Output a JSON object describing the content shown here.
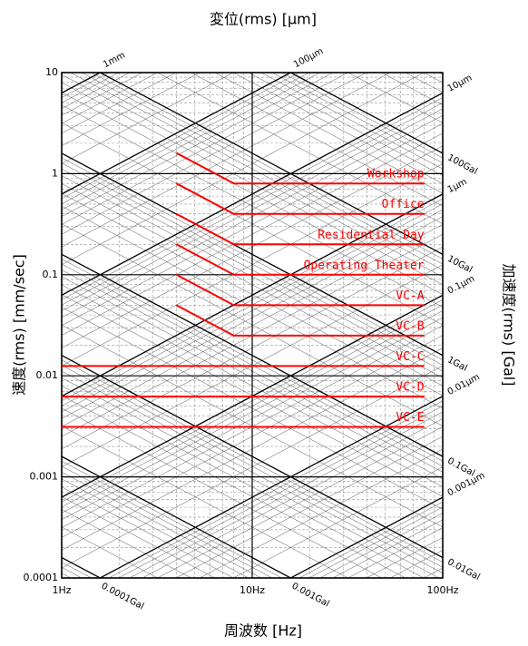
{
  "chart_data": {
    "type": "tripartite",
    "title": "変位(rms) [μm]",
    "ylabel": "速度(rms) [mm/sec]",
    "y2label": "加速度(rms) [Gal]",
    "xlabel": "周波数 [Hz]",
    "log_x": true,
    "log_y": true,
    "xlim": [
      1,
      100
    ],
    "xticks": [
      {
        "value": 1,
        "label": "1Hz"
      },
      {
        "value": 10,
        "label": "10Hz"
      },
      {
        "value": 100,
        "label": "100Hz"
      }
    ],
    "ylim": [
      0.0001,
      10
    ],
    "yticks": [
      0.0001,
      0.001,
      0.01,
      0.1,
      1,
      10
    ],
    "grid": true,
    "displacement_lines": [
      {
        "value": 1000,
        "label": "1mm"
      },
      {
        "value": 100,
        "label": "100μm"
      },
      {
        "value": 10,
        "label": "10μm"
      },
      {
        "value": 1,
        "label": "1μm"
      },
      {
        "value": 0.1,
        "label": "0.1μm"
      },
      {
        "value": 0.01,
        "label": "0.01μm"
      },
      {
        "value": 0.001,
        "label": "0.001μm"
      }
    ],
    "acceleration_lines": [
      {
        "value": 100,
        "label": "100Gal"
      },
      {
        "value": 10,
        "label": "10Gal"
      },
      {
        "value": 1,
        "label": "1Gal"
      },
      {
        "value": 0.1,
        "label": "0.1Gal"
      },
      {
        "value": 0.01,
        "label": "0.01Gal"
      },
      {
        "value": 0.001,
        "label": "0.001Gal"
      },
      {
        "value": 0.0001,
        "label": "0.0001Gal"
      }
    ],
    "series": [
      {
        "name": "Workshop",
        "color": "#ff0000",
        "x": [
          4,
          8,
          80
        ],
        "values": [
          1.6,
          0.8,
          0.8
        ]
      },
      {
        "name": "Office",
        "color": "#ff0000",
        "x": [
          4,
          8,
          80
        ],
        "values": [
          0.8,
          0.4,
          0.4
        ]
      },
      {
        "name": "Residential Day",
        "color": "#ff0000",
        "x": [
          4,
          8,
          80
        ],
        "values": [
          0.4,
          0.2,
          0.2
        ]
      },
      {
        "name": "Operating Theater",
        "color": "#ff0000",
        "x": [
          4,
          8,
          80
        ],
        "values": [
          0.2,
          0.1,
          0.1
        ]
      },
      {
        "name": "VC-A",
        "color": "#ff0000",
        "x": [
          4,
          8,
          80
        ],
        "values": [
          0.1,
          0.05,
          0.05
        ]
      },
      {
        "name": "VC-B",
        "color": "#ff0000",
        "x": [
          4,
          8,
          80
        ],
        "values": [
          0.05,
          0.025,
          0.025
        ]
      },
      {
        "name": "VC-C",
        "color": "#ff0000",
        "x": [
          1,
          80
        ],
        "values": [
          0.0125,
          0.0125
        ]
      },
      {
        "name": "VC-D",
        "color": "#ff0000",
        "x": [
          1,
          80
        ],
        "values": [
          0.00625,
          0.00625
        ]
      },
      {
        "name": "VC-E",
        "color": "#ff0000",
        "x": [
          1,
          80
        ],
        "values": [
          0.003125,
          0.003125
        ]
      }
    ]
  }
}
